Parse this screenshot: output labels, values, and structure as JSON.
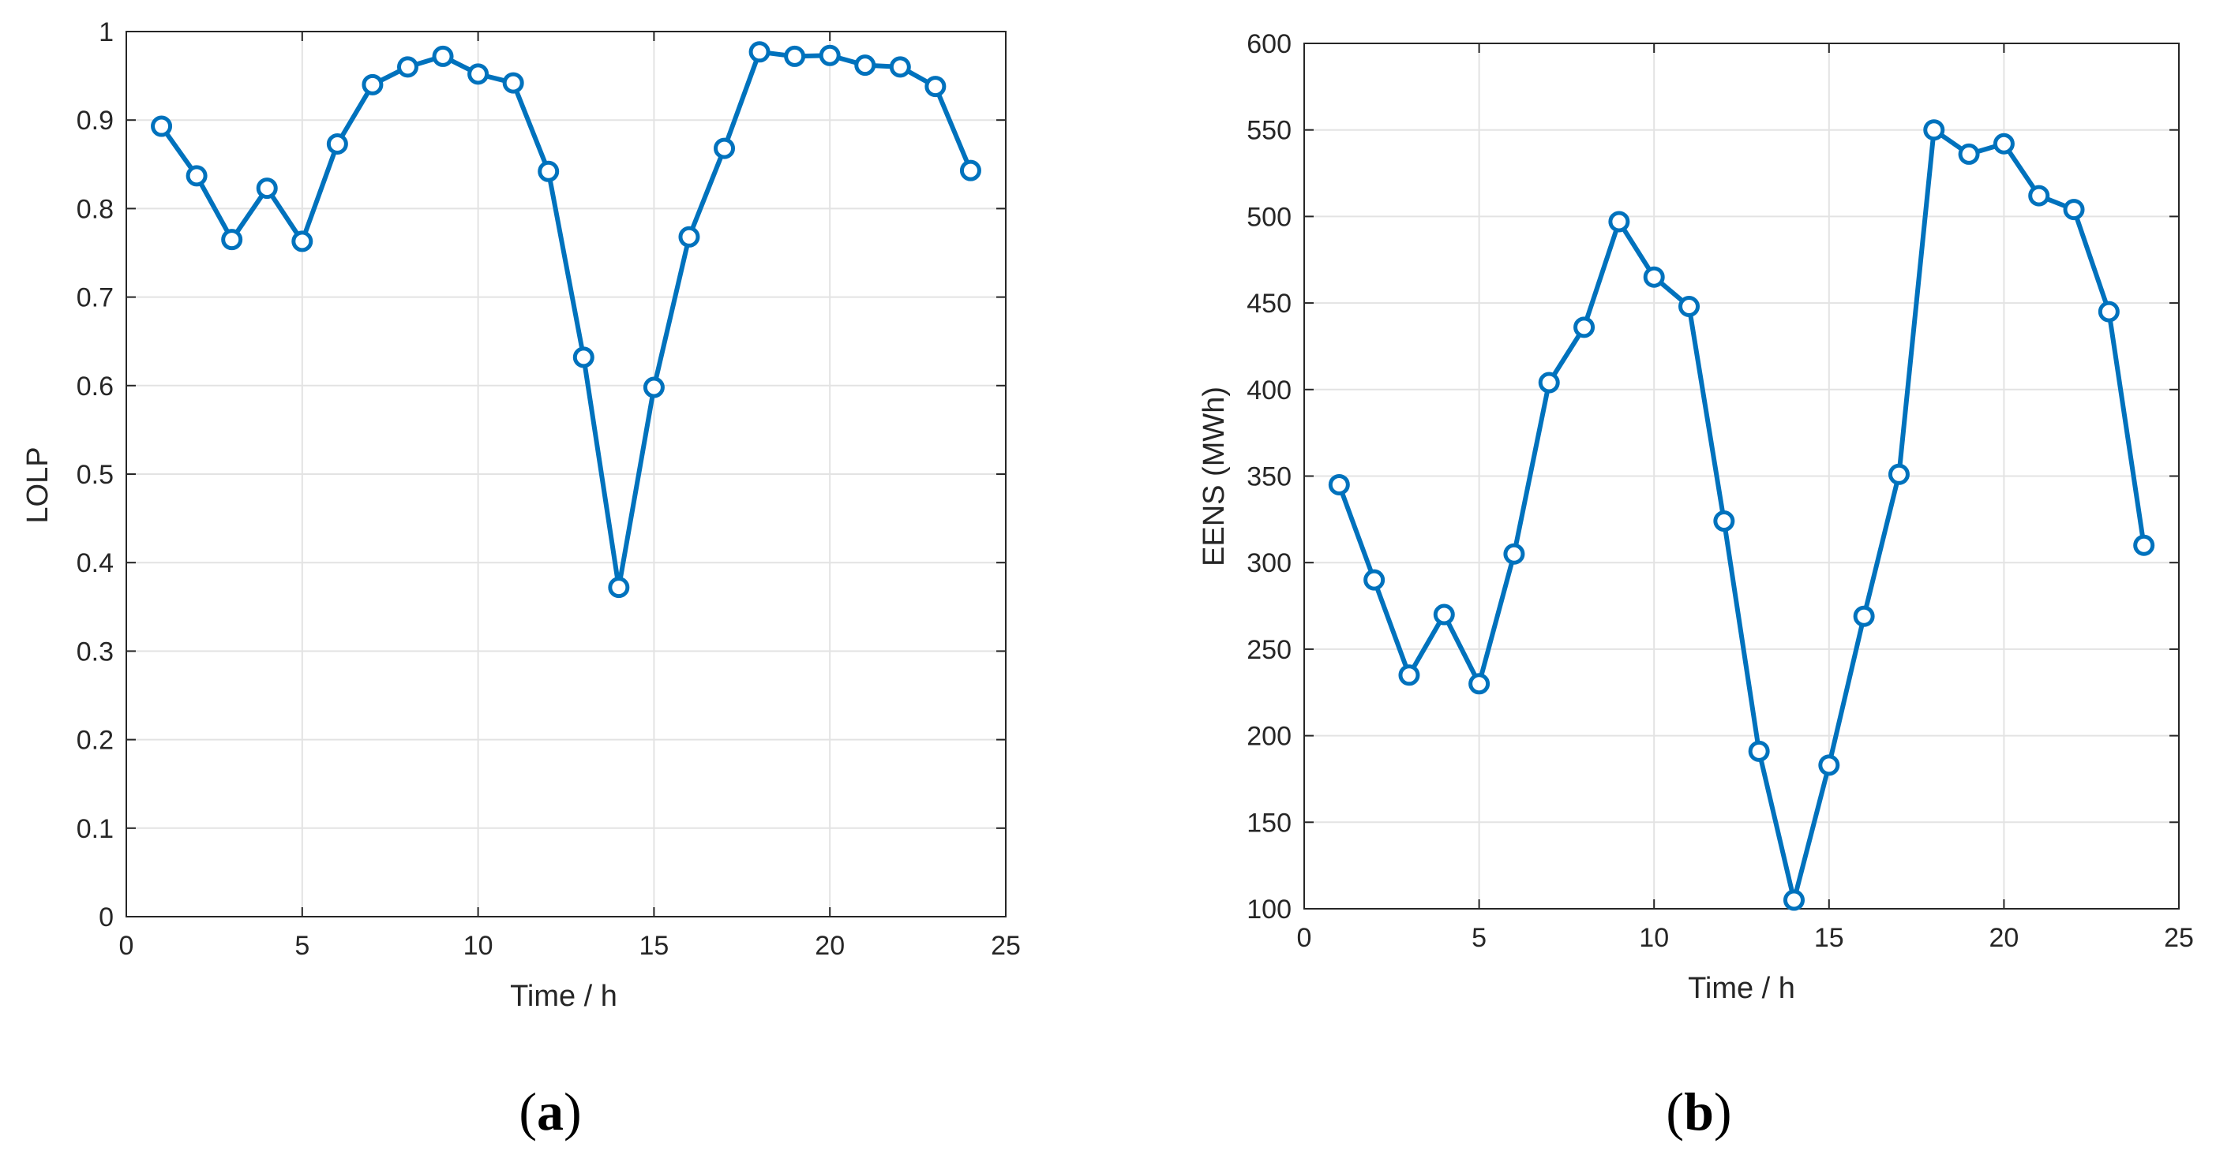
{
  "colors": {
    "series": "#0072BD",
    "grid": "#e3e3e3",
    "axis": "#262626"
  },
  "chart_data": [
    {
      "type": "line",
      "panel_label": {
        "open": "(",
        "letter": "a",
        "close": ")"
      },
      "xlabel": "Time / h",
      "ylabel": "LOLP",
      "xlim": [
        0,
        25
      ],
      "ylim": [
        0,
        1
      ],
      "xticks": [
        0,
        5,
        10,
        15,
        20,
        25
      ],
      "xtick_labels": [
        "0",
        "5",
        "10",
        "15",
        "20",
        "25"
      ],
      "yticks": [
        0,
        0.1,
        0.2,
        0.3,
        0.4,
        0.5,
        0.6,
        0.7,
        0.8,
        0.9,
        1
      ],
      "ytick_labels": [
        "0",
        "0.1",
        "0.2",
        "0.3",
        "0.4",
        "0.5",
        "0.6",
        "0.7",
        "0.8",
        "0.9",
        "1"
      ],
      "grid": true,
      "marker": "circle",
      "series": [
        {
          "x": [
            1,
            2,
            3,
            4,
            5,
            6,
            7,
            8,
            9,
            10,
            11,
            12,
            13,
            14,
            15,
            16,
            17,
            18,
            19,
            20,
            21,
            22,
            23,
            24
          ],
          "y": [
            0.893,
            0.837,
            0.765,
            0.823,
            0.763,
            0.873,
            0.94,
            0.96,
            0.972,
            0.952,
            0.942,
            0.842,
            0.632,
            0.372,
            0.598,
            0.768,
            0.868,
            0.977,
            0.972,
            0.973,
            0.962,
            0.96,
            0.938,
            0.843
          ]
        }
      ]
    },
    {
      "type": "line",
      "panel_label": {
        "open": "(",
        "letter": "b",
        "close": ")"
      },
      "xlabel": "Time / h",
      "ylabel": "EENS (MWh)",
      "xlim": [
        0,
        25
      ],
      "ylim": [
        100,
        600
      ],
      "xticks": [
        0,
        5,
        10,
        15,
        20,
        25
      ],
      "xtick_labels": [
        "0",
        "5",
        "10",
        "15",
        "20",
        "25"
      ],
      "yticks": [
        100,
        150,
        200,
        250,
        300,
        350,
        400,
        450,
        500,
        550,
        600
      ],
      "ytick_labels": [
        "100",
        "150",
        "200",
        "250",
        "300",
        "350",
        "400",
        "450",
        "500",
        "550",
        "600"
      ],
      "grid": true,
      "marker": "circle",
      "series": [
        {
          "x": [
            1,
            2,
            3,
            4,
            5,
            6,
            7,
            8,
            9,
            10,
            11,
            12,
            13,
            14,
            15,
            16,
            17,
            18,
            19,
            20,
            21,
            22,
            23,
            24
          ],
          "y": [
            345,
            290,
            235,
            270,
            230,
            305,
            404,
            436,
            497,
            465,
            448,
            324,
            191,
            105,
            183,
            269,
            351,
            550,
            536,
            542,
            512,
            504,
            445,
            310
          ]
        }
      ]
    }
  ]
}
